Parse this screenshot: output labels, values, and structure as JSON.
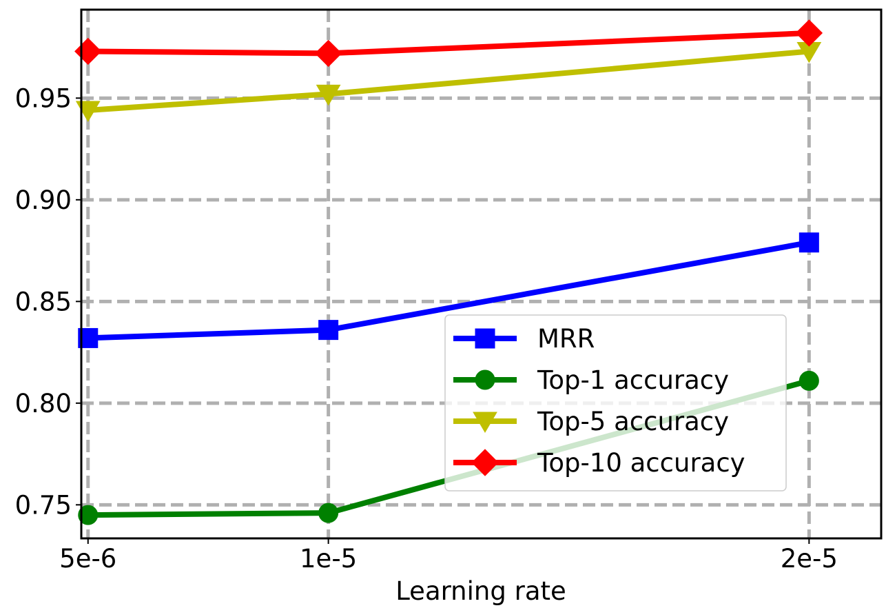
{
  "chart_data": {
    "type": "line",
    "title": "",
    "xlabel": "Learning rate",
    "ylabel": "",
    "x": [
      "5e-6",
      "1e-5",
      "2e-5"
    ],
    "x_values": [
      5e-06,
      1e-05,
      2e-05
    ],
    "xlim": [
      4.86e-06,
      2.15e-05
    ],
    "ylim": [
      0.7335,
      0.9935
    ],
    "yticks": [
      0.75,
      0.8,
      0.85,
      0.9,
      0.95
    ],
    "ytick_labels": [
      "0.75",
      "0.80",
      "0.85",
      "0.90",
      "0.95"
    ],
    "grid": true,
    "legend_position": "lower-right",
    "series": [
      {
        "name": "MRR",
        "color": "#0000ff",
        "marker": "square",
        "values": [
          0.832,
          0.836,
          0.879
        ]
      },
      {
        "name": "Top-1 accuracy",
        "color": "#008000",
        "marker": "circle",
        "values": [
          0.745,
          0.746,
          0.811
        ]
      },
      {
        "name": "Top-5 accuracy",
        "color": "#bfbf00",
        "marker": "triangle-down",
        "values": [
          0.944,
          0.952,
          0.973
        ]
      },
      {
        "name": "Top-10 accuracy",
        "color": "#ff0000",
        "marker": "diamond",
        "values": [
          0.973,
          0.972,
          0.982
        ]
      }
    ]
  }
}
